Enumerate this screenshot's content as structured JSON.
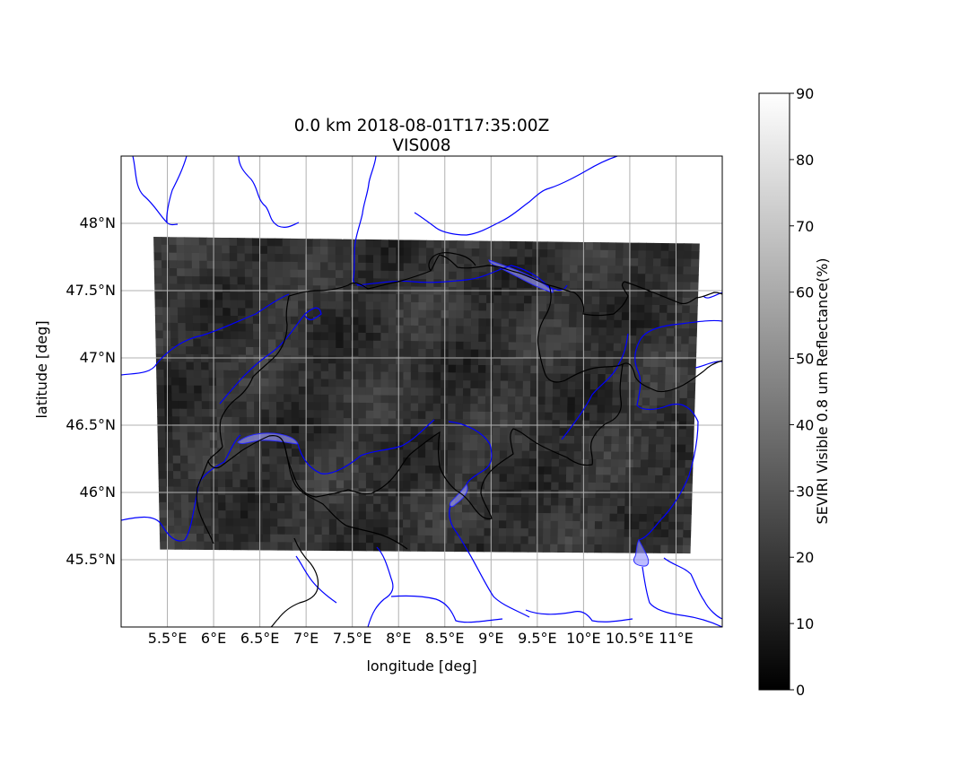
{
  "title": {
    "line1": "0.0 km 2018-08-01T17:35:00Z",
    "line2": "VIS008"
  },
  "axes": {
    "xlabel": "longitude [deg]",
    "ylabel": "latitude [deg]",
    "xlim": [
      5.0,
      11.5
    ],
    "ylim": [
      45.0,
      48.5
    ],
    "x_ticks": [
      {
        "value": 5.5,
        "label": "5.5°E"
      },
      {
        "value": 6.0,
        "label": "6°E"
      },
      {
        "value": 6.5,
        "label": "6.5°E"
      },
      {
        "value": 7.0,
        "label": "7°E"
      },
      {
        "value": 7.5,
        "label": "7.5°E"
      },
      {
        "value": 8.0,
        "label": "8°E"
      },
      {
        "value": 8.5,
        "label": "8.5°E"
      },
      {
        "value": 9.0,
        "label": "9°E"
      },
      {
        "value": 9.5,
        "label": "9.5°E"
      },
      {
        "value": 10.0,
        "label": "10°E"
      },
      {
        "value": 10.5,
        "label": "10.5°E"
      },
      {
        "value": 11.0,
        "label": "11°E"
      }
    ],
    "y_ticks": [
      {
        "value": 45.5,
        "label": "45.5°N"
      },
      {
        "value": 46.0,
        "label": "46°N"
      },
      {
        "value": 46.5,
        "label": "46.5°N"
      },
      {
        "value": 47.0,
        "label": "47°N"
      },
      {
        "value": 47.5,
        "label": "47.5°N"
      },
      {
        "value": 48.0,
        "label": "48°N"
      }
    ],
    "grid": true
  },
  "colorbar": {
    "label": "SEVIRI Visible 0.8 um Reflectance(%)",
    "min": 0,
    "max": 90,
    "colormap": "greys",
    "ticks": [
      0,
      10,
      20,
      30,
      40,
      50,
      60,
      70,
      80,
      90
    ]
  },
  "data_region": {
    "corners": {
      "top_left": [
        5.35,
        47.9
      ],
      "top_right": [
        11.25,
        47.85
      ],
      "bottom_right": [
        11.15,
        45.55
      ],
      "bottom_left": [
        5.42,
        45.58
      ]
    },
    "typical_reflectance_range": [
      5,
      30
    ]
  },
  "colors": {
    "rivers": "#0000ff",
    "borders": "#000000",
    "lakes": "#b0b0ff",
    "grid": "#b0b0b0"
  }
}
